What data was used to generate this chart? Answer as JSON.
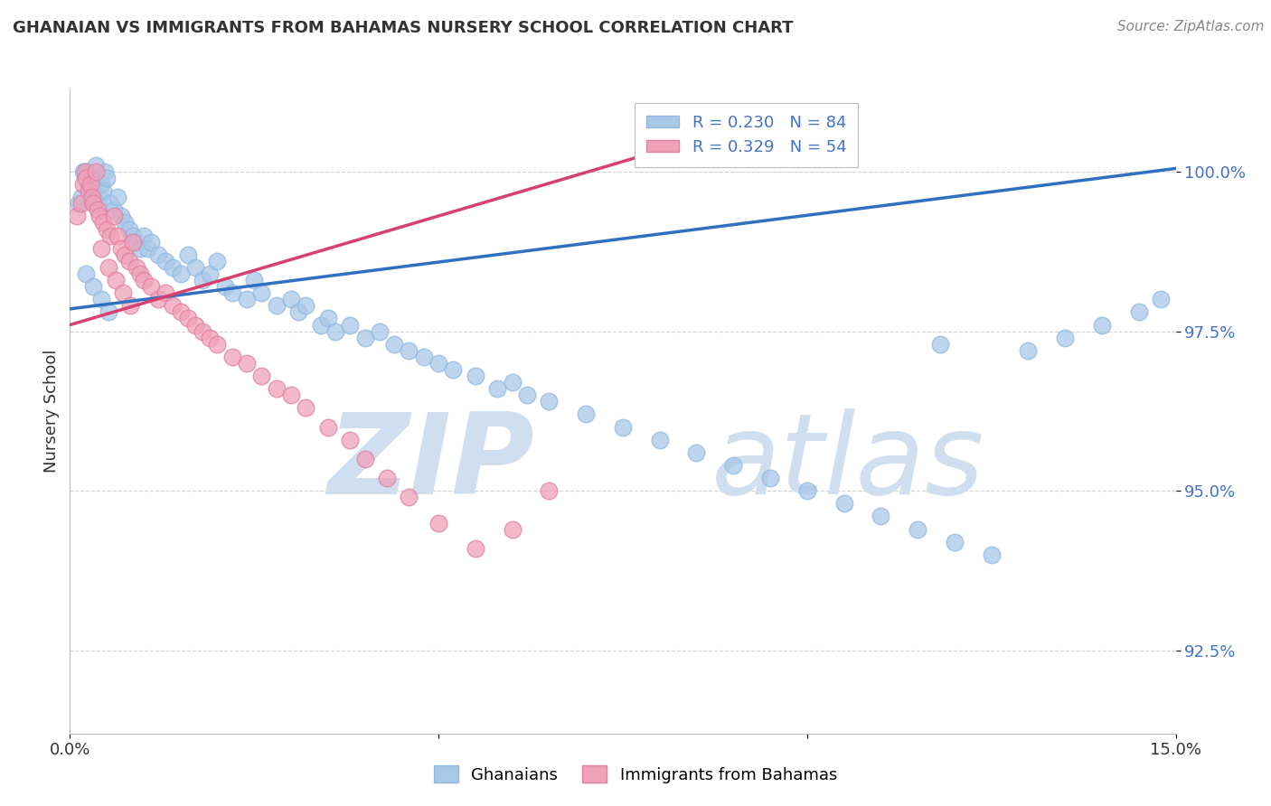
{
  "title": "GHANAIAN VS IMMIGRANTS FROM BAHAMAS NURSERY SCHOOL CORRELATION CHART",
  "source_text": "Source: ZipAtlas.com",
  "xlabel_ghanaians": "Ghanaians",
  "xlabel_immigrants": "Immigrants from Bahamas",
  "ylabel": "Nursery School",
  "xlim": [
    0.0,
    15.0
  ],
  "ylim": [
    91.2,
    101.3
  ],
  "yticks": [
    92.5,
    95.0,
    97.5,
    100.0
  ],
  "yticklabels": [
    "92.5%",
    "95.0%",
    "97.5%",
    "100.0%"
  ],
  "r_blue": 0.23,
  "n_blue": 84,
  "r_pink": 0.329,
  "n_pink": 54,
  "blue_color": "#A8C8E8",
  "pink_color": "#F0A0B8",
  "blue_line_color": "#3070C0",
  "pink_line_color": "#D84070",
  "watermark_zip": "ZIP",
  "watermark_atlas": "atlas",
  "watermark_color": "#D0DFF0",
  "background_color": "#FFFFFF",
  "grid_color": "#CCCCCC",
  "title_color": "#333333",
  "tick_color": "#4472C4",
  "blue_line_x": [
    0.0,
    15.0
  ],
  "blue_line_y": [
    97.85,
    100.05
  ],
  "pink_line_x": [
    0.0,
    8.5
  ],
  "pink_line_y": [
    97.6,
    100.5
  ],
  "blue_x": [
    0.12,
    0.15,
    0.18,
    0.2,
    0.22,
    0.25,
    0.28,
    0.3,
    0.32,
    0.35,
    0.38,
    0.4,
    0.42,
    0.45,
    0.48,
    0.5,
    0.55,
    0.6,
    0.65,
    0.7,
    0.75,
    0.8,
    0.85,
    0.9,
    0.95,
    1.0,
    1.05,
    1.1,
    1.2,
    1.3,
    1.4,
    1.5,
    1.6,
    1.7,
    1.8,
    1.9,
    2.0,
    2.1,
    2.2,
    2.4,
    2.5,
    2.6,
    2.8,
    3.0,
    3.1,
    3.2,
    3.4,
    3.5,
    3.6,
    3.8,
    4.0,
    4.2,
    4.4,
    4.6,
    4.8,
    5.0,
    5.2,
    5.5,
    5.8,
    6.0,
    6.2,
    6.5,
    7.0,
    7.5,
    8.0,
    8.5,
    9.0,
    9.5,
    10.0,
    10.5,
    11.0,
    11.5,
    12.0,
    12.5,
    13.0,
    13.5,
    14.0,
    14.5,
    14.8,
    11.8,
    0.22,
    0.32,
    0.42,
    0.52
  ],
  "blue_y": [
    99.5,
    99.6,
    100.0,
    99.9,
    100.0,
    99.8,
    99.7,
    99.9,
    99.8,
    100.1,
    99.5,
    99.6,
    99.8,
    99.7,
    100.0,
    99.9,
    99.5,
    99.4,
    99.6,
    99.3,
    99.2,
    99.1,
    99.0,
    98.9,
    98.8,
    99.0,
    98.8,
    98.9,
    98.7,
    98.6,
    98.5,
    98.4,
    98.7,
    98.5,
    98.3,
    98.4,
    98.6,
    98.2,
    98.1,
    98.0,
    98.3,
    98.1,
    97.9,
    98.0,
    97.8,
    97.9,
    97.6,
    97.7,
    97.5,
    97.6,
    97.4,
    97.5,
    97.3,
    97.2,
    97.1,
    97.0,
    96.9,
    96.8,
    96.6,
    96.7,
    96.5,
    96.4,
    96.2,
    96.0,
    95.8,
    95.6,
    95.4,
    95.2,
    95.0,
    94.8,
    94.6,
    94.4,
    94.2,
    94.0,
    97.2,
    97.4,
    97.6,
    97.8,
    98.0,
    97.3,
    98.4,
    98.2,
    98.0,
    97.8
  ],
  "pink_x": [
    0.1,
    0.15,
    0.18,
    0.2,
    0.22,
    0.25,
    0.28,
    0.3,
    0.32,
    0.35,
    0.38,
    0.4,
    0.45,
    0.5,
    0.55,
    0.6,
    0.65,
    0.7,
    0.75,
    0.8,
    0.85,
    0.9,
    0.95,
    1.0,
    1.1,
    1.2,
    1.3,
    1.4,
    1.5,
    1.6,
    1.7,
    1.8,
    1.9,
    2.0,
    2.2,
    2.4,
    2.6,
    2.8,
    3.0,
    3.2,
    3.5,
    3.8,
    4.0,
    4.3,
    4.6,
    5.0,
    5.5,
    6.0,
    6.5,
    0.42,
    0.52,
    0.62,
    0.72,
    0.82
  ],
  "pink_y": [
    99.3,
    99.5,
    99.8,
    100.0,
    99.9,
    99.7,
    99.8,
    99.6,
    99.5,
    100.0,
    99.4,
    99.3,
    99.2,
    99.1,
    99.0,
    99.3,
    99.0,
    98.8,
    98.7,
    98.6,
    98.9,
    98.5,
    98.4,
    98.3,
    98.2,
    98.0,
    98.1,
    97.9,
    97.8,
    97.7,
    97.6,
    97.5,
    97.4,
    97.3,
    97.1,
    97.0,
    96.8,
    96.6,
    96.5,
    96.3,
    96.0,
    95.8,
    95.5,
    95.2,
    94.9,
    94.5,
    94.1,
    94.4,
    95.0,
    98.8,
    98.5,
    98.3,
    98.1,
    97.9
  ]
}
